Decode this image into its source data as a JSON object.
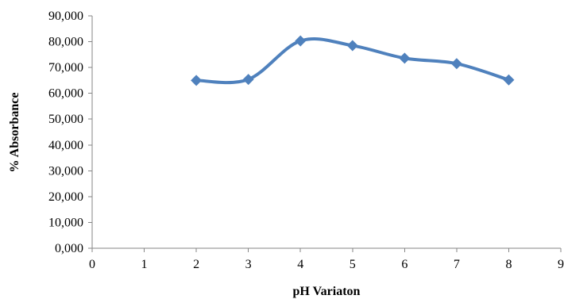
{
  "chart_data": {
    "type": "scatter",
    "title": "",
    "xlabel": "pH Variaton",
    "ylabel": "% Absorbance",
    "xlim": [
      0,
      9
    ],
    "ylim": [
      0,
      90000
    ],
    "x_ticks": [
      0,
      1,
      2,
      3,
      4,
      5,
      6,
      7,
      8,
      9
    ],
    "x_tick_labels": [
      "0",
      "1",
      "2",
      "3",
      "4",
      "5",
      "6",
      "7",
      "8",
      "9"
    ],
    "y_ticks": [
      0,
      10000,
      20000,
      30000,
      40000,
      50000,
      60000,
      70000,
      80000,
      90000
    ],
    "y_tick_labels": [
      "0,000",
      "10,000",
      "20,000",
      "30,000",
      "40,000",
      "50,000",
      "60,000",
      "70,000",
      "80,000",
      "90,000"
    ],
    "grid": false,
    "legend": "none",
    "smooth_line": true,
    "marker": "diamond",
    "series": [
      {
        "color": "#4F81BD",
        "x": [
          2,
          3,
          4,
          5,
          6,
          7,
          8
        ],
        "y": [
          65000,
          65400,
          80300,
          78500,
          73600,
          71500,
          65200
        ]
      }
    ]
  }
}
